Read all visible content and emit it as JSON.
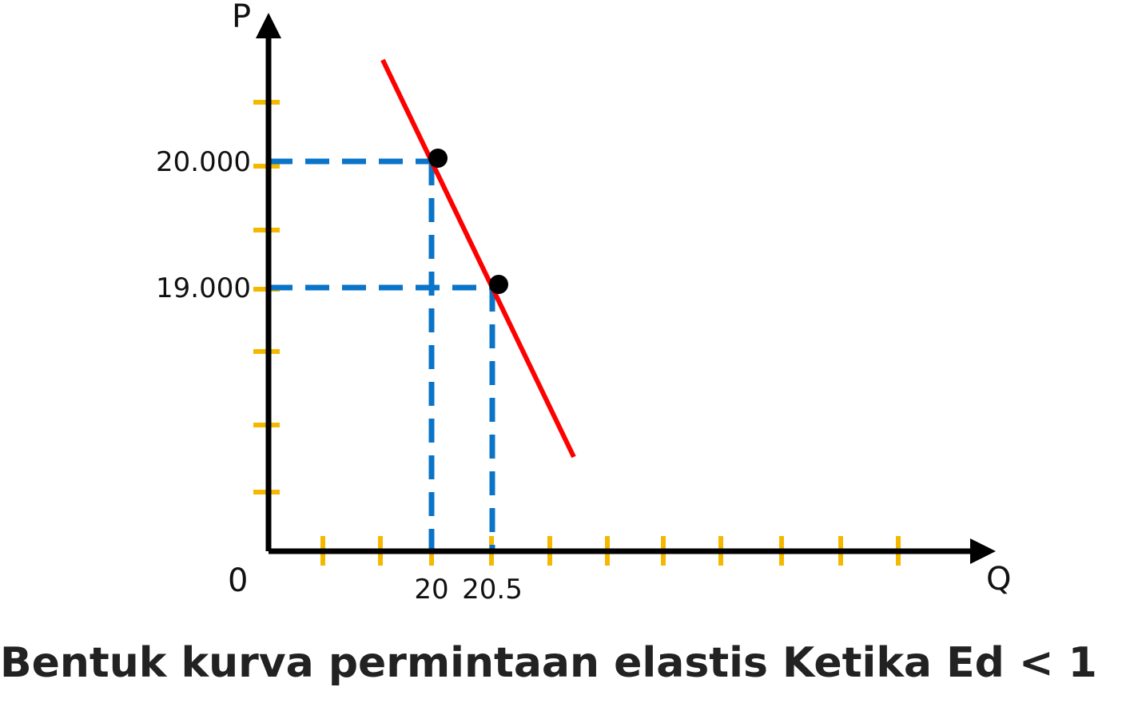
{
  "caption": "Bentuk kurva permintaan elastis Ketika Ed < 1",
  "chart_data": {
    "type": "line",
    "title": "Bentuk kurva permintaan elastis Ketika Ed < 1",
    "xlabel": "Q",
    "ylabel": "P",
    "origin_label": "0",
    "x_tick_labels": [
      "20",
      "20.5"
    ],
    "y_tick_labels": [
      "20.000",
      "19.000"
    ],
    "points": [
      {
        "x": 20,
        "y": 20000
      },
      {
        "x": 20.5,
        "y": 19000
      }
    ],
    "x_unlabeled_ticks": 12,
    "y_unlabeled_ticks": 5,
    "grid": false,
    "colors": {
      "curve": "#ff0000",
      "guides": "#0a74c8",
      "ticks": "#f5b800",
      "axes": "#000000",
      "points": "#000000"
    }
  }
}
